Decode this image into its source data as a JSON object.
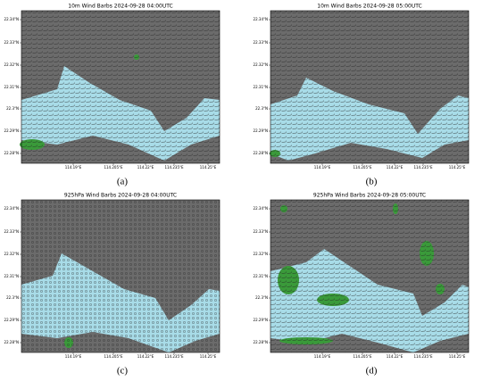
{
  "panels": [
    {
      "title": "10m Wind Barbs 2024-09-28 04:00UTC",
      "label": "(a)",
      "yticks": [
        "22.34°N",
        "22.33°N",
        "22.32°N",
        "22.31°N",
        "22.3°N",
        "22.29°N",
        "22.28°N"
      ],
      "xticks": [
        "114.19°E",
        "114.205°E",
        "114.22°E",
        "114.235°E",
        "114.25°E"
      ]
    },
    {
      "title": "10m Wind Barbs 2024-09-28 05:00UTC",
      "label": "(b)",
      "yticks": [
        "22.34°N",
        "22.33°N",
        "22.32°N",
        "22.31°N",
        "22.3°N",
        "22.29°N",
        "22.28°N"
      ],
      "xticks": [
        "114.19°E",
        "114.205°E",
        "114.22°E",
        "114.235°E",
        "114.25°E"
      ]
    },
    {
      "title": "925hPa Wind Barbs 2024-09-28 04:00UTC",
      "label": "(c)",
      "yticks": [
        "22.34°N",
        "22.33°N",
        "22.32°N",
        "22.31°N",
        "22.3°N",
        "22.29°N",
        "22.28°N"
      ],
      "xticks": [
        "114.19°E",
        "114.205°E",
        "114.22°E",
        "114.235°E",
        "114.25°E"
      ]
    },
    {
      "title": "925hPa Wind Barbs 2024-09-28 05:00UTC",
      "label": "(d)",
      "yticks": [
        "22.34°N",
        "22.33°N",
        "22.32°N",
        "22.31°N",
        "22.3°N",
        "22.29°N",
        "22.28°N"
      ],
      "xticks": [
        "114.19°E",
        "114.205°E",
        "114.22°E",
        "114.235°E",
        "114.25°E"
      ]
    }
  ]
}
